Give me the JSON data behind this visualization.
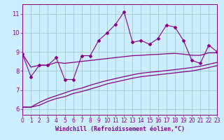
{
  "xlabel": "Windchill (Refroidissement éolien,°C)",
  "bg_color": "#cceeff",
  "line_color": "#880088",
  "grid_color": "#99cccc",
  "x_data": [
    0,
    1,
    2,
    3,
    4,
    5,
    6,
    7,
    8,
    9,
    10,
    11,
    12,
    13,
    14,
    15,
    16,
    17,
    18,
    19,
    20,
    21,
    22,
    23
  ],
  "scatter_y": [
    8.9,
    7.7,
    8.3,
    8.3,
    8.7,
    7.55,
    7.55,
    8.8,
    8.8,
    9.6,
    10.0,
    10.45,
    11.1,
    9.5,
    9.6,
    9.4,
    9.7,
    10.4,
    10.3,
    9.6,
    8.55,
    8.4,
    9.35,
    9.0
  ],
  "upper_line": [
    8.9,
    8.2,
    8.3,
    8.3,
    8.45,
    8.4,
    8.45,
    8.5,
    8.55,
    8.6,
    8.65,
    8.7,
    8.75,
    8.8,
    8.82,
    8.85,
    8.87,
    8.9,
    8.92,
    8.88,
    8.82,
    8.82,
    8.95,
    8.95
  ],
  "lower_line1": [
    6.1,
    6.1,
    6.35,
    6.55,
    6.7,
    6.85,
    7.0,
    7.1,
    7.25,
    7.38,
    7.5,
    7.6,
    7.7,
    7.8,
    7.88,
    7.93,
    7.97,
    8.02,
    8.07,
    8.12,
    8.18,
    8.25,
    8.35,
    8.45
  ],
  "lower_line2": [
    6.1,
    6.1,
    6.2,
    6.4,
    6.55,
    6.65,
    6.82,
    6.92,
    7.05,
    7.18,
    7.32,
    7.42,
    7.52,
    7.62,
    7.7,
    7.75,
    7.8,
    7.85,
    7.9,
    7.95,
    8.0,
    8.08,
    8.18,
    8.28
  ],
  "xlim": [
    0,
    23
  ],
  "ylim": [
    5.7,
    11.5
  ],
  "yticks": [
    6,
    7,
    8,
    9,
    10,
    11
  ],
  "xticks": [
    0,
    1,
    2,
    3,
    4,
    5,
    6,
    7,
    8,
    9,
    10,
    11,
    12,
    13,
    14,
    15,
    16,
    17,
    18,
    19,
    20,
    21,
    22,
    23
  ],
  "xlabel_fontsize": 6,
  "tick_fontsize": 5.5
}
